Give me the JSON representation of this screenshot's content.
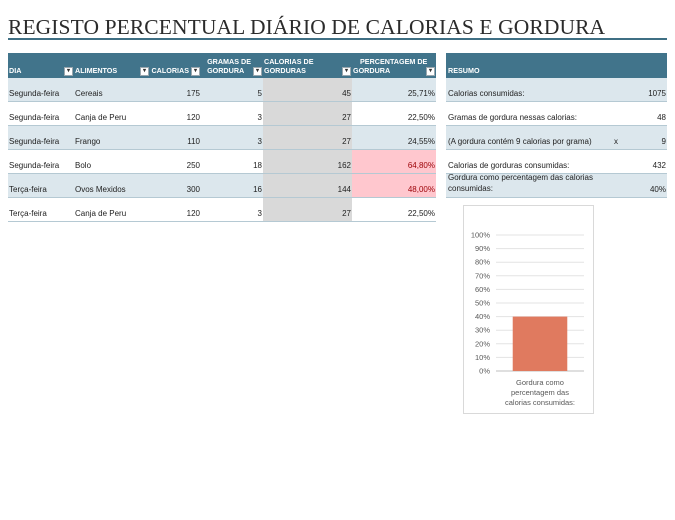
{
  "title": "REGISTO PERCENTUAL DIÁRIO DE CALORIAS E GORDURA",
  "table": {
    "headers": {
      "dia": "DIA",
      "alimentos": "ALIMENTOS",
      "calorias": "CALORIAS",
      "gramas_line1": "GRAMAS DE",
      "gramas_line2": "GORDURA",
      "cal_gord_line1": "CALORIAS DE",
      "cal_gord_line2": "GORDURAS",
      "pct_line1": "PERCENTAGEM DE",
      "pct_line2": "GORDURA",
      "dropdown_icon": "▾"
    },
    "rows": [
      {
        "dia": "Segunda-feira",
        "alimento": "Cereais",
        "calorias": "175",
        "gramas": "5",
        "cal_gord": "45",
        "pct": "25,71%",
        "highlight": false
      },
      {
        "dia": "Segunda-feira",
        "alimento": "Canja de Peru",
        "calorias": "120",
        "gramas": "3",
        "cal_gord": "27",
        "pct": "22,50%",
        "highlight": false
      },
      {
        "dia": "Segunda-feira",
        "alimento": "Frango",
        "calorias": "110",
        "gramas": "3",
        "cal_gord": "27",
        "pct": "24,55%",
        "highlight": false
      },
      {
        "dia": "Segunda-feira",
        "alimento": "Bolo",
        "calorias": "250",
        "gramas": "18",
        "cal_gord": "162",
        "pct": "64,80%",
        "highlight": true
      },
      {
        "dia": "Terça-feira",
        "alimento": "Ovos Mexidos",
        "calorias": "300",
        "gramas": "16",
        "cal_gord": "144",
        "pct": "48,00%",
        "highlight": true
      },
      {
        "dia": "Terça-feira",
        "alimento": "Canja de Peru",
        "calorias": "120",
        "gramas": "3",
        "cal_gord": "27",
        "pct": "22,50%",
        "highlight": false
      }
    ]
  },
  "summary": {
    "header": "RESUMO",
    "rows": [
      {
        "label": "Calorias consumidas:",
        "value": "1075"
      },
      {
        "label": "Gramas de gordura nessas calorias:",
        "value": "48"
      },
      {
        "label": "(A gordura contém 9 calorias por grama)",
        "mid": "x",
        "value": "9"
      },
      {
        "label": "Calorias de gorduras consumidas:",
        "value": "432"
      },
      {
        "label_line1": "Gordura como percentagem das calorias",
        "label_line2": "consumidas:",
        "value": "40%"
      }
    ]
  },
  "colors": {
    "header_bg": "#41748b",
    "band_bg": "#dce7ed",
    "grey_col": "#d9d9d9",
    "highlight_bg": "#ffc7ce",
    "highlight_text": "#9c0006",
    "bar": "#e07a5f"
  },
  "chart_data": {
    "type": "bar",
    "categories": [
      "Gordura como percentagem das calorias consumidas:"
    ],
    "category_lines": [
      "Gordura como",
      "percentagem das",
      "calorias consumidas:"
    ],
    "values": [
      40
    ],
    "ylim": [
      0,
      100
    ],
    "yticks": [
      "0%",
      "10%",
      "20%",
      "30%",
      "40%",
      "50%",
      "60%",
      "70%",
      "80%",
      "90%",
      "100%"
    ],
    "grid": true,
    "legend": false
  }
}
